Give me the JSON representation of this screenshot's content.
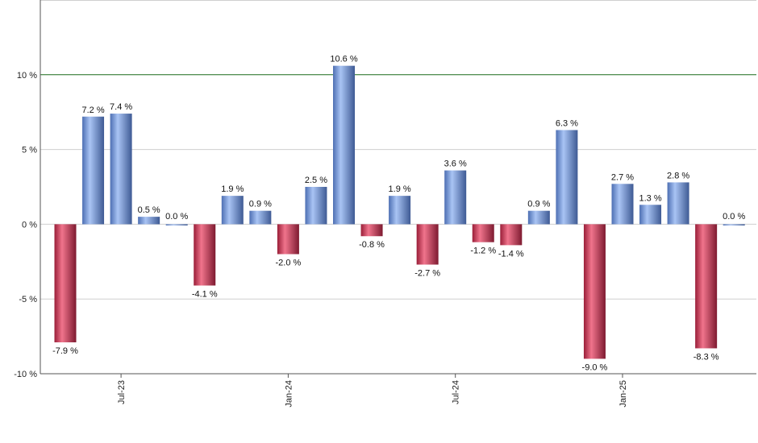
{
  "chart_data": {
    "type": "bar",
    "title": "",
    "xlabel": "",
    "ylabel": "",
    "ylim": [
      -10,
      15
    ],
    "grid": true,
    "reference_line": {
      "value": 10,
      "color": "#1a6b1a"
    },
    "colors": {
      "positive": "#6f94d8",
      "negative": "#c8304e",
      "axis": "#555555",
      "grid": "#cfcfcf"
    },
    "y_ticks": [
      {
        "value": 10,
        "label": "10 %"
      },
      {
        "value": 5,
        "label": "5 %"
      },
      {
        "value": 0,
        "label": "0 %"
      },
      {
        "value": -5,
        "label": "-5 %"
      },
      {
        "value": -10,
        "label": "-10 %"
      }
    ],
    "x_tick_labels": [
      {
        "index": 2,
        "label": "Jul-23"
      },
      {
        "index": 8,
        "label": "Jan-24"
      },
      {
        "index": 14,
        "label": "Jul-24"
      },
      {
        "index": 20,
        "label": "Jan-25"
      }
    ],
    "values": [
      -7.9,
      7.2,
      7.4,
      0.5,
      0.0,
      -4.1,
      1.9,
      0.9,
      -2.0,
      2.5,
      10.6,
      -0.8,
      1.9,
      -2.7,
      3.6,
      -1.2,
      -1.4,
      0.9,
      6.3,
      -9.0,
      2.7,
      1.3,
      2.8,
      -8.3,
      0.0
    ],
    "labels": [
      "-7.9 %",
      "7.2 %",
      "7.4 %",
      "0.5 %",
      "0.0 %",
      "-4.1 %",
      "1.9 %",
      "0.9 %",
      "-2.0 %",
      "2.5 %",
      "10.6 %",
      "-0.8 %",
      "1.9 %",
      "-2.7 %",
      "3.6 %",
      "-1.2 %",
      "-1.4 %",
      "0.9 %",
      "6.3 %",
      "-9.0 %",
      "2.7 %",
      "1.3 %",
      "2.8 %",
      "-8.3 %",
      "0.0 %"
    ]
  }
}
